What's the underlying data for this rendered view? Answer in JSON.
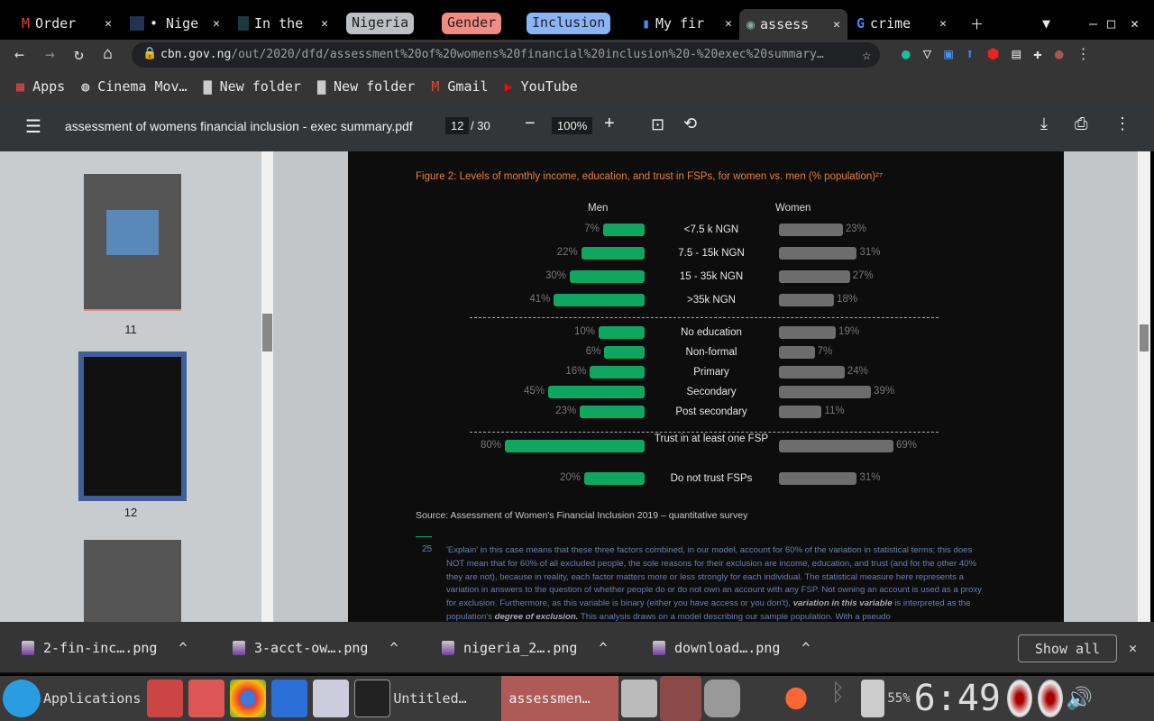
{
  "tabs": [
    {
      "label": "Order",
      "icon": "gmail-icon"
    },
    {
      "label": "• Nige",
      "icon": "site-icon"
    },
    {
      "label": "In the",
      "icon": "site-icon"
    },
    {
      "label": "My fir",
      "icon": "bookmark-icon"
    },
    {
      "label": "assess",
      "icon": "cbn-icon",
      "active": true
    },
    {
      "label": "crime",
      "icon": "google-icon"
    }
  ],
  "tab_groups": [
    {
      "label": "Nigeria",
      "color": "#bdc1c6"
    },
    {
      "label": "Gender",
      "color": "#f28b82"
    },
    {
      "label": "Inclusion",
      "color": "#8ab4f8"
    }
  ],
  "url": {
    "host": "cbn.gov.ng",
    "path": "/out/2020/dfd/assessment%20of%20womens%20financial%20inclusion%20-%20exec%20summary…"
  },
  "bookmarks": [
    "Apps",
    "Cinema Mov…",
    "New folder",
    "New folder",
    "Gmail",
    "YouTube"
  ],
  "pdf": {
    "title": "assessment of womens financial inclusion - exec summary.pdf",
    "page": "12",
    "total": "/ 30",
    "zoom": "100%"
  },
  "thumbnails": [
    "11",
    "12"
  ],
  "chart_data": {
    "type": "bar",
    "title": "Figure 2: Levels of monthly income, education, and trust in FSPs, for women vs. men (% population)²⁷",
    "headers": {
      "men": "Men",
      "women": "Women"
    },
    "groups": [
      {
        "categories": [
          "<7.5 k NGN",
          "7.5 - 15k NGN",
          "15 - 35k NGN",
          ">35k NGN"
        ],
        "men": [
          7,
          22,
          30,
          41
        ],
        "women": [
          23,
          31,
          27,
          18
        ]
      },
      {
        "categories": [
          "No education",
          "Non-formal",
          "Primary",
          "Secondary",
          "Post secondary"
        ],
        "men": [
          10,
          6,
          16,
          45,
          23
        ],
        "women": [
          19,
          7,
          24,
          39,
          11
        ]
      },
      {
        "categories": [
          "Trust in at least one FSP",
          "Do not trust FSPs"
        ],
        "men": [
          80,
          20
        ],
        "women": [
          69,
          31
        ]
      }
    ],
    "colors": {
      "men": "#0fa760",
      "women": "#6d6d6d"
    },
    "source": "Source: Assessment of Women's Financial Inclusion 2019 – quantitative survey"
  },
  "footnote": {
    "num": "25",
    "text": "'Explain' in this case means that these three factors combined, in our model, account for 60% of the variation in statistical terms; this does NOT mean that for 60% of all excluded people, the sole reasons for their exclusion are income, education, and trust (and for the other 40% they are not), because in reality, each factor matters more or less strongly for each individual. The statistical measure here represents a variation in answers to the question of whether people do or do not own an account with any FSP. Not owning an account is used as a proxy for exclusion. Furthermore, as this variable is binary (either you have access or you don't),",
    "bold1": "variation in this variable",
    "text2": "is interpreted as the population's",
    "bold2": "degree of exclusion.",
    "text3": "This analysis draws on a model describing our sample population. With a pseudo"
  },
  "downloads": [
    "2-fin-inc….png",
    "3-acct-ow….png",
    "nigeria_2….png",
    "download….png"
  ],
  "show_all": "Show all",
  "taskbar": {
    "apps": "Applications",
    "untitled": "Untitled…",
    "active": "assessmen…",
    "battery": "55%",
    "time": "6:49"
  }
}
